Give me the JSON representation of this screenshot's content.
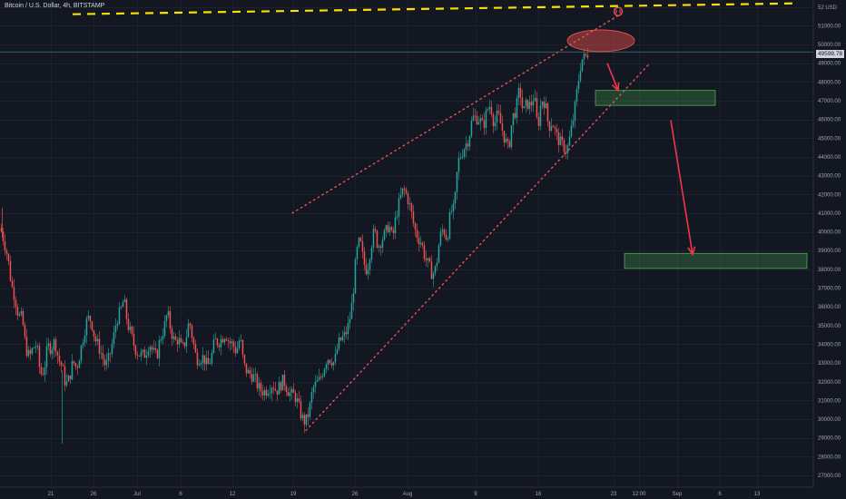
{
  "header": {
    "title": "Bitcoin / U.S. Dollar, 4h, BITSTAMP"
  },
  "current_price_label": "49598.78",
  "colors": {
    "background": "#131722",
    "bull": "#26a69a",
    "bear": "#ef5350",
    "projection_box": "#4caf50",
    "resistance_line": "#f5e200",
    "channel": "#ef5350"
  },
  "chart_data": {
    "type": "candlestick",
    "title": "Bitcoin / U.S. Dollar, 4h, BITSTAMP",
    "y_axis_unit": "USD",
    "ylim": [
      26500,
      52300
    ],
    "y_ticks": [
      "27000.00",
      "28000.00",
      "29000.00",
      "30000.00",
      "31000.00",
      "32000.00",
      "33000.00",
      "34000.00",
      "35000.00",
      "36000.00",
      "37000.00",
      "38000.00",
      "39000.00",
      "40000.00",
      "41000.00",
      "42000.00",
      "43000.00",
      "44000.00",
      "45000.00",
      "46000.00",
      "47000.00",
      "48000.00",
      "49000.00",
      "50000.00",
      "51000.00",
      "52 USD"
    ],
    "x_ticks": [
      "21",
      "26",
      "Jul",
      "6",
      "12",
      "19",
      "26",
      "Aug",
      "9",
      "16",
      "23",
      "12:00",
      "Sep",
      "6",
      "13"
    ],
    "close_path": [
      [
        0,
        40200
      ],
      [
        4,
        39500
      ],
      [
        8,
        38700
      ],
      [
        12,
        37200
      ],
      [
        16,
        36500
      ],
      [
        20,
        35500
      ],
      [
        24,
        35400
      ],
      [
        28,
        33800
      ],
      [
        32,
        33300
      ],
      [
        36,
        33800
      ],
      [
        40,
        34000
      ],
      [
        44,
        32400
      ],
      [
        48,
        32600
      ],
      [
        52,
        33900
      ],
      [
        56,
        33800
      ],
      [
        60,
        34200
      ],
      [
        64,
        33200
      ],
      [
        68,
        32800
      ],
      [
        72,
        31800
      ],
      [
        76,
        32200
      ],
      [
        80,
        33100
      ],
      [
        84,
        32700
      ],
      [
        88,
        33600
      ],
      [
        92,
        34600
      ],
      [
        96,
        35400
      ],
      [
        100,
        35300
      ],
      [
        104,
        34300
      ],
      [
        108,
        33900
      ],
      [
        112,
        33400
      ],
      [
        116,
        32800
      ],
      [
        120,
        33300
      ],
      [
        124,
        34200
      ],
      [
        128,
        35300
      ],
      [
        132,
        35700
      ],
      [
        136,
        36400
      ],
      [
        140,
        35100
      ],
      [
        144,
        34500
      ],
      [
        148,
        33800
      ],
      [
        152,
        33500
      ],
      [
        156,
        33400
      ],
      [
        160,
        33500
      ],
      [
        164,
        34100
      ],
      [
        168,
        33600
      ],
      [
        172,
        33300
      ],
      [
        176,
        34300
      ],
      [
        180,
        34800
      ],
      [
        184,
        35700
      ],
      [
        188,
        34700
      ],
      [
        192,
        34100
      ],
      [
        196,
        34300
      ],
      [
        200,
        33700
      ],
      [
        204,
        34200
      ],
      [
        208,
        35300
      ],
      [
        212,
        34200
      ],
      [
        216,
        33200
      ],
      [
        220,
        33300
      ],
      [
        224,
        33300
      ],
      [
        228,
        32800
      ],
      [
        232,
        33200
      ],
      [
        236,
        34200
      ],
      [
        240,
        34100
      ],
      [
        244,
        34300
      ],
      [
        248,
        34600
      ],
      [
        252,
        34100
      ],
      [
        256,
        34000
      ],
      [
        260,
        33600
      ],
      [
        264,
        34400
      ],
      [
        268,
        32900
      ],
      [
        272,
        32500
      ],
      [
        276,
        32400
      ],
      [
        280,
        32200
      ],
      [
        284,
        31700
      ],
      [
        288,
        31500
      ],
      [
        292,
        31500
      ],
      [
        296,
        31700
      ],
      [
        300,
        31900
      ],
      [
        304,
        31500
      ],
      [
        308,
        31800
      ],
      [
        312,
        32100
      ],
      [
        316,
        31600
      ],
      [
        320,
        31300
      ],
      [
        324,
        31300
      ],
      [
        328,
        30800
      ],
      [
        332,
        30100
      ],
      [
        336,
        29800
      ],
      [
        340,
        30400
      ],
      [
        344,
        31600
      ],
      [
        348,
        31900
      ],
      [
        352,
        32100
      ],
      [
        356,
        32700
      ],
      [
        360,
        33300
      ],
      [
        364,
        33200
      ],
      [
        368,
        33000
      ],
      [
        372,
        34000
      ],
      [
        376,
        34300
      ],
      [
        380,
        34500
      ],
      [
        384,
        35100
      ],
      [
        388,
        36400
      ],
      [
        392,
        38800
      ],
      [
        396,
        39600
      ],
      [
        400,
        38400
      ],
      [
        404,
        37900
      ],
      [
        408,
        39200
      ],
      [
        412,
        40100
      ],
      [
        416,
        39200
      ],
      [
        420,
        39600
      ],
      [
        424,
        39900
      ],
      [
        428,
        40400
      ],
      [
        432,
        39600
      ],
      [
        436,
        40900
      ],
      [
        440,
        41700
      ],
      [
        444,
        42300
      ],
      [
        448,
        41900
      ],
      [
        452,
        41200
      ],
      [
        456,
        40200
      ],
      [
        460,
        39700
      ],
      [
        464,
        39400
      ],
      [
        468,
        38600
      ],
      [
        472,
        38200
      ],
      [
        476,
        37700
      ],
      [
        480,
        38100
      ],
      [
        484,
        39700
      ],
      [
        488,
        40200
      ],
      [
        492,
        39600
      ],
      [
        496,
        41100
      ],
      [
        500,
        41200
      ],
      [
        504,
        43700
      ],
      [
        508,
        44200
      ],
      [
        512,
        44600
      ],
      [
        516,
        45000
      ],
      [
        520,
        46100
      ],
      [
        524,
        46100
      ],
      [
        528,
        46000
      ],
      [
        532,
        45600
      ],
      [
        536,
        46500
      ],
      [
        540,
        46800
      ],
      [
        544,
        45700
      ],
      [
        548,
        46300
      ],
      [
        552,
        45600
      ],
      [
        556,
        44900
      ],
      [
        560,
        44400
      ],
      [
        564,
        46100
      ],
      [
        568,
        46500
      ],
      [
        572,
        47700
      ],
      [
        576,
        46300
      ],
      [
        580,
        46900
      ],
      [
        584,
        46700
      ],
      [
        588,
        47300
      ],
      [
        592,
        45500
      ],
      [
        596,
        47100
      ],
      [
        600,
        46900
      ],
      [
        604,
        45600
      ],
      [
        608,
        45900
      ],
      [
        612,
        45200
      ],
      [
        616,
        44800
      ],
      [
        620,
        44600
      ],
      [
        624,
        44300
      ],
      [
        628,
        45200
      ],
      [
        632,
        46300
      ],
      [
        636,
        47800
      ],
      [
        640,
        49200
      ],
      [
        644,
        49300
      ],
      [
        648,
        49600
      ]
    ],
    "annotations": {
      "resistance_level": 52100,
      "channel_upper": [
        [
          322,
          41000
        ],
        [
          683,
          51600
        ]
      ],
      "channel_lower": [
        [
          337,
          29400
        ],
        [
          714,
          48900
        ]
      ],
      "target_box_1": {
        "x0": 656,
        "x1": 788,
        "y0": 46750,
        "y1": 47550
      },
      "target_box_2": {
        "x0": 688,
        "x1": 889,
        "y0": 38050,
        "y1": 38850
      },
      "arrow_1": [
        [
          669,
          49000
        ],
        [
          681,
          47550
        ]
      ],
      "arrow_2": [
        [
          739,
          45950
        ],
        [
          763,
          38800
        ]
      ],
      "ellipse": {
        "cx": 662,
        "cy": 50200
      }
    }
  }
}
